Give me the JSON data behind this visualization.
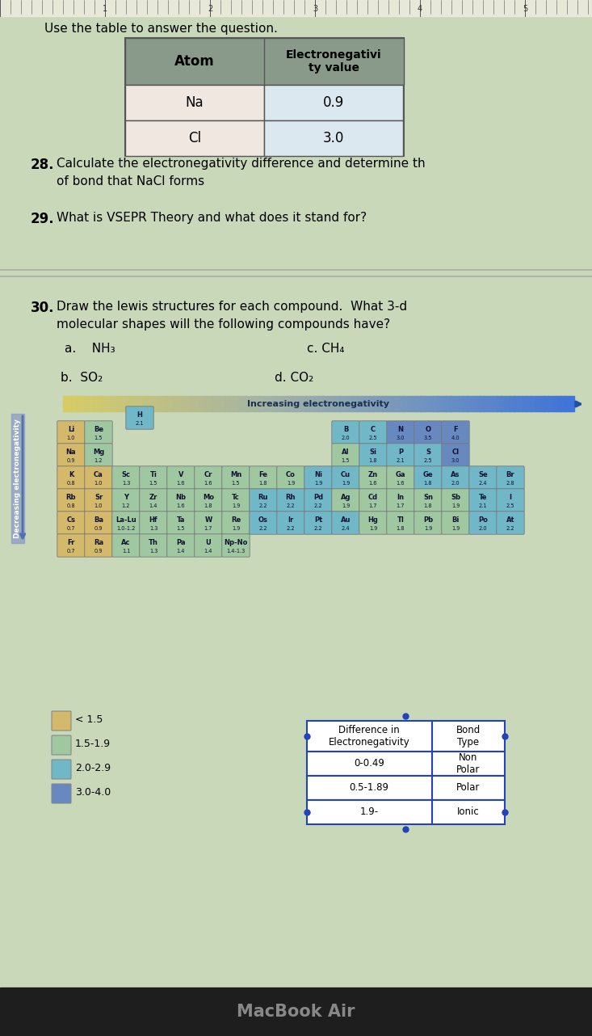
{
  "title_text": "Use the table to answer the question.",
  "bg_color": "#cad8ba",
  "table_header": [
    "Atom",
    "Electronegativi\nty value"
  ],
  "table_rows": [
    [
      "Na",
      "0.9"
    ],
    [
      "Cl",
      "3.0"
    ]
  ],
  "q28_num": "28.",
  "q28_line1": "Calculate the electronegativity difference and determine th",
  "q28_line2": "of bond that NaCl forms",
  "q29_num": "29.",
  "q29_text": "What is VSEPR Theory and what does it stand for?",
  "q30_num": "30.",
  "q30_line1": "Draw the lewis structures for each compound.  What 3-d",
  "q30_line2": "molecular shapes will the following compounds have?",
  "q30_a": "a.    NH₃",
  "q30_c": "c. CH₄",
  "q30_b": "b.  SO₂",
  "q30_d": "d. CO₂",
  "c_yellow": "#d4b96a",
  "c_ltgreen": "#a0c8a0",
  "c_ltblue": "#70b8c8",
  "c_blue": "#6888c0",
  "legend_items": [
    "< 1.5",
    "1.5-1.9",
    "2.0-2.9",
    "3.0-4.0"
  ],
  "legend_colors": [
    "#d4b96a",
    "#a0c8a0",
    "#70b8c8",
    "#6888c0"
  ],
  "bond_table_rows": [
    [
      "Difference in\nElectronegativity",
      "Bond\nType"
    ],
    [
      "0-0.49",
      "Non\nPolar"
    ],
    [
      "0.5-1.89",
      "Polar"
    ],
    [
      "1.9-",
      "Ionic"
    ]
  ],
  "increasing_text": "Increasing electronegativity",
  "decreasing_text": "Decreasing electronegativity",
  "macbook_text": "MacBook Air",
  "ruler_color": "#e8e8d8",
  "sep_line_color": "#aaaaaa",
  "header_bg": "#8a9a8a",
  "cell1_bg": "#f0e8e0",
  "cell2_bg": "#dce8f0"
}
